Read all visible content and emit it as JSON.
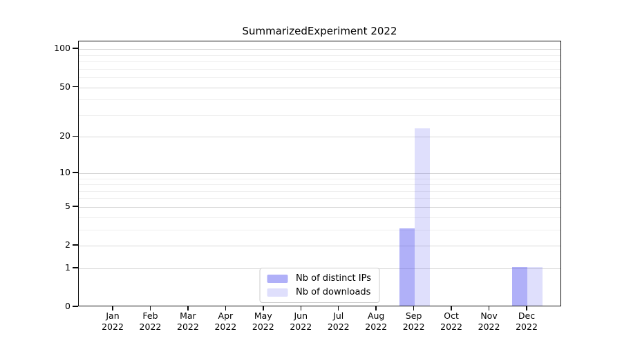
{
  "chart_data": {
    "type": "bar",
    "title": "SummarizedExperiment 2022",
    "yscale": "log1p",
    "ylim": [
      0,
      115
    ],
    "y_ticks": [
      0,
      1,
      2,
      5,
      10,
      20,
      50,
      100
    ],
    "y_minor_gridlines": [
      3,
      4,
      6,
      7,
      8,
      9,
      30,
      40,
      60,
      70,
      80,
      90
    ],
    "grid": true,
    "categories": [
      "Jan",
      "Feb",
      "Mar",
      "Apr",
      "May",
      "Jun",
      "Jul",
      "Aug",
      "Sep",
      "Oct",
      "Nov",
      "Dec"
    ],
    "year": "2022",
    "series": [
      {
        "name": "Nb of distinct IPs",
        "color": "rgba(80,80,240,0.45)",
        "values": [
          0,
          0,
          0,
          0,
          0,
          0,
          0,
          0,
          3,
          0,
          0,
          1
        ]
      },
      {
        "name": "Nb of downloads",
        "color": "rgba(80,80,240,0.18)",
        "values": [
          0,
          0,
          0,
          0,
          0,
          0,
          0,
          0,
          23,
          0,
          0,
          1
        ]
      }
    ],
    "legend": {
      "position": "bottom-center",
      "items": [
        "Nb of distinct IPs",
        "Nb of downloads"
      ]
    },
    "colors": {
      "major_gridline": "#d6d6d6",
      "minor_gridline": "#efefef",
      "axis": "#0a0a0a",
      "background": "#ffffff"
    }
  }
}
